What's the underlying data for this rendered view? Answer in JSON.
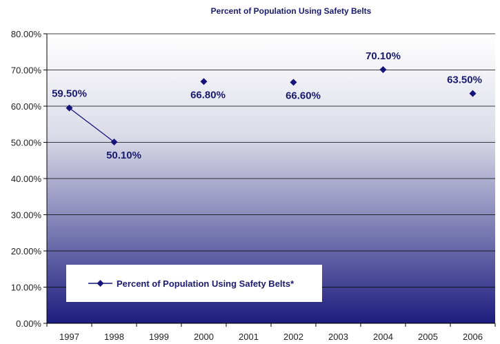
{
  "chart_data": {
    "type": "line",
    "title": "Percent of Population Using Safety Belts",
    "categories": [
      "1997",
      "1998",
      "1999",
      "2000",
      "2001",
      "2002",
      "2003",
      "2004",
      "2005",
      "2006"
    ],
    "y_ticks": [
      "0.00%",
      "10.00%",
      "20.00%",
      "30.00%",
      "40.00%",
      "50.00%",
      "60.00%",
      "70.00%",
      "80.00%"
    ],
    "ylim": [
      0,
      80
    ],
    "grid": "horizontal",
    "legend_position": "bottom-left",
    "series": [
      {
        "name": "Percent of Population Using Safety Belts*",
        "color": "#14147a",
        "marker": "diamond",
        "values": [
          59.5,
          50.1,
          null,
          66.8,
          null,
          66.6,
          null,
          70.1,
          null,
          63.5
        ],
        "labels": [
          "59.50%",
          "50.10%",
          null,
          "66.80%",
          null,
          "66.60%",
          null,
          "70.10%",
          null,
          "63.50%"
        ]
      }
    ],
    "plot_background": {
      "top": "#ffffff",
      "bottom": "#1c1c7e"
    }
  }
}
